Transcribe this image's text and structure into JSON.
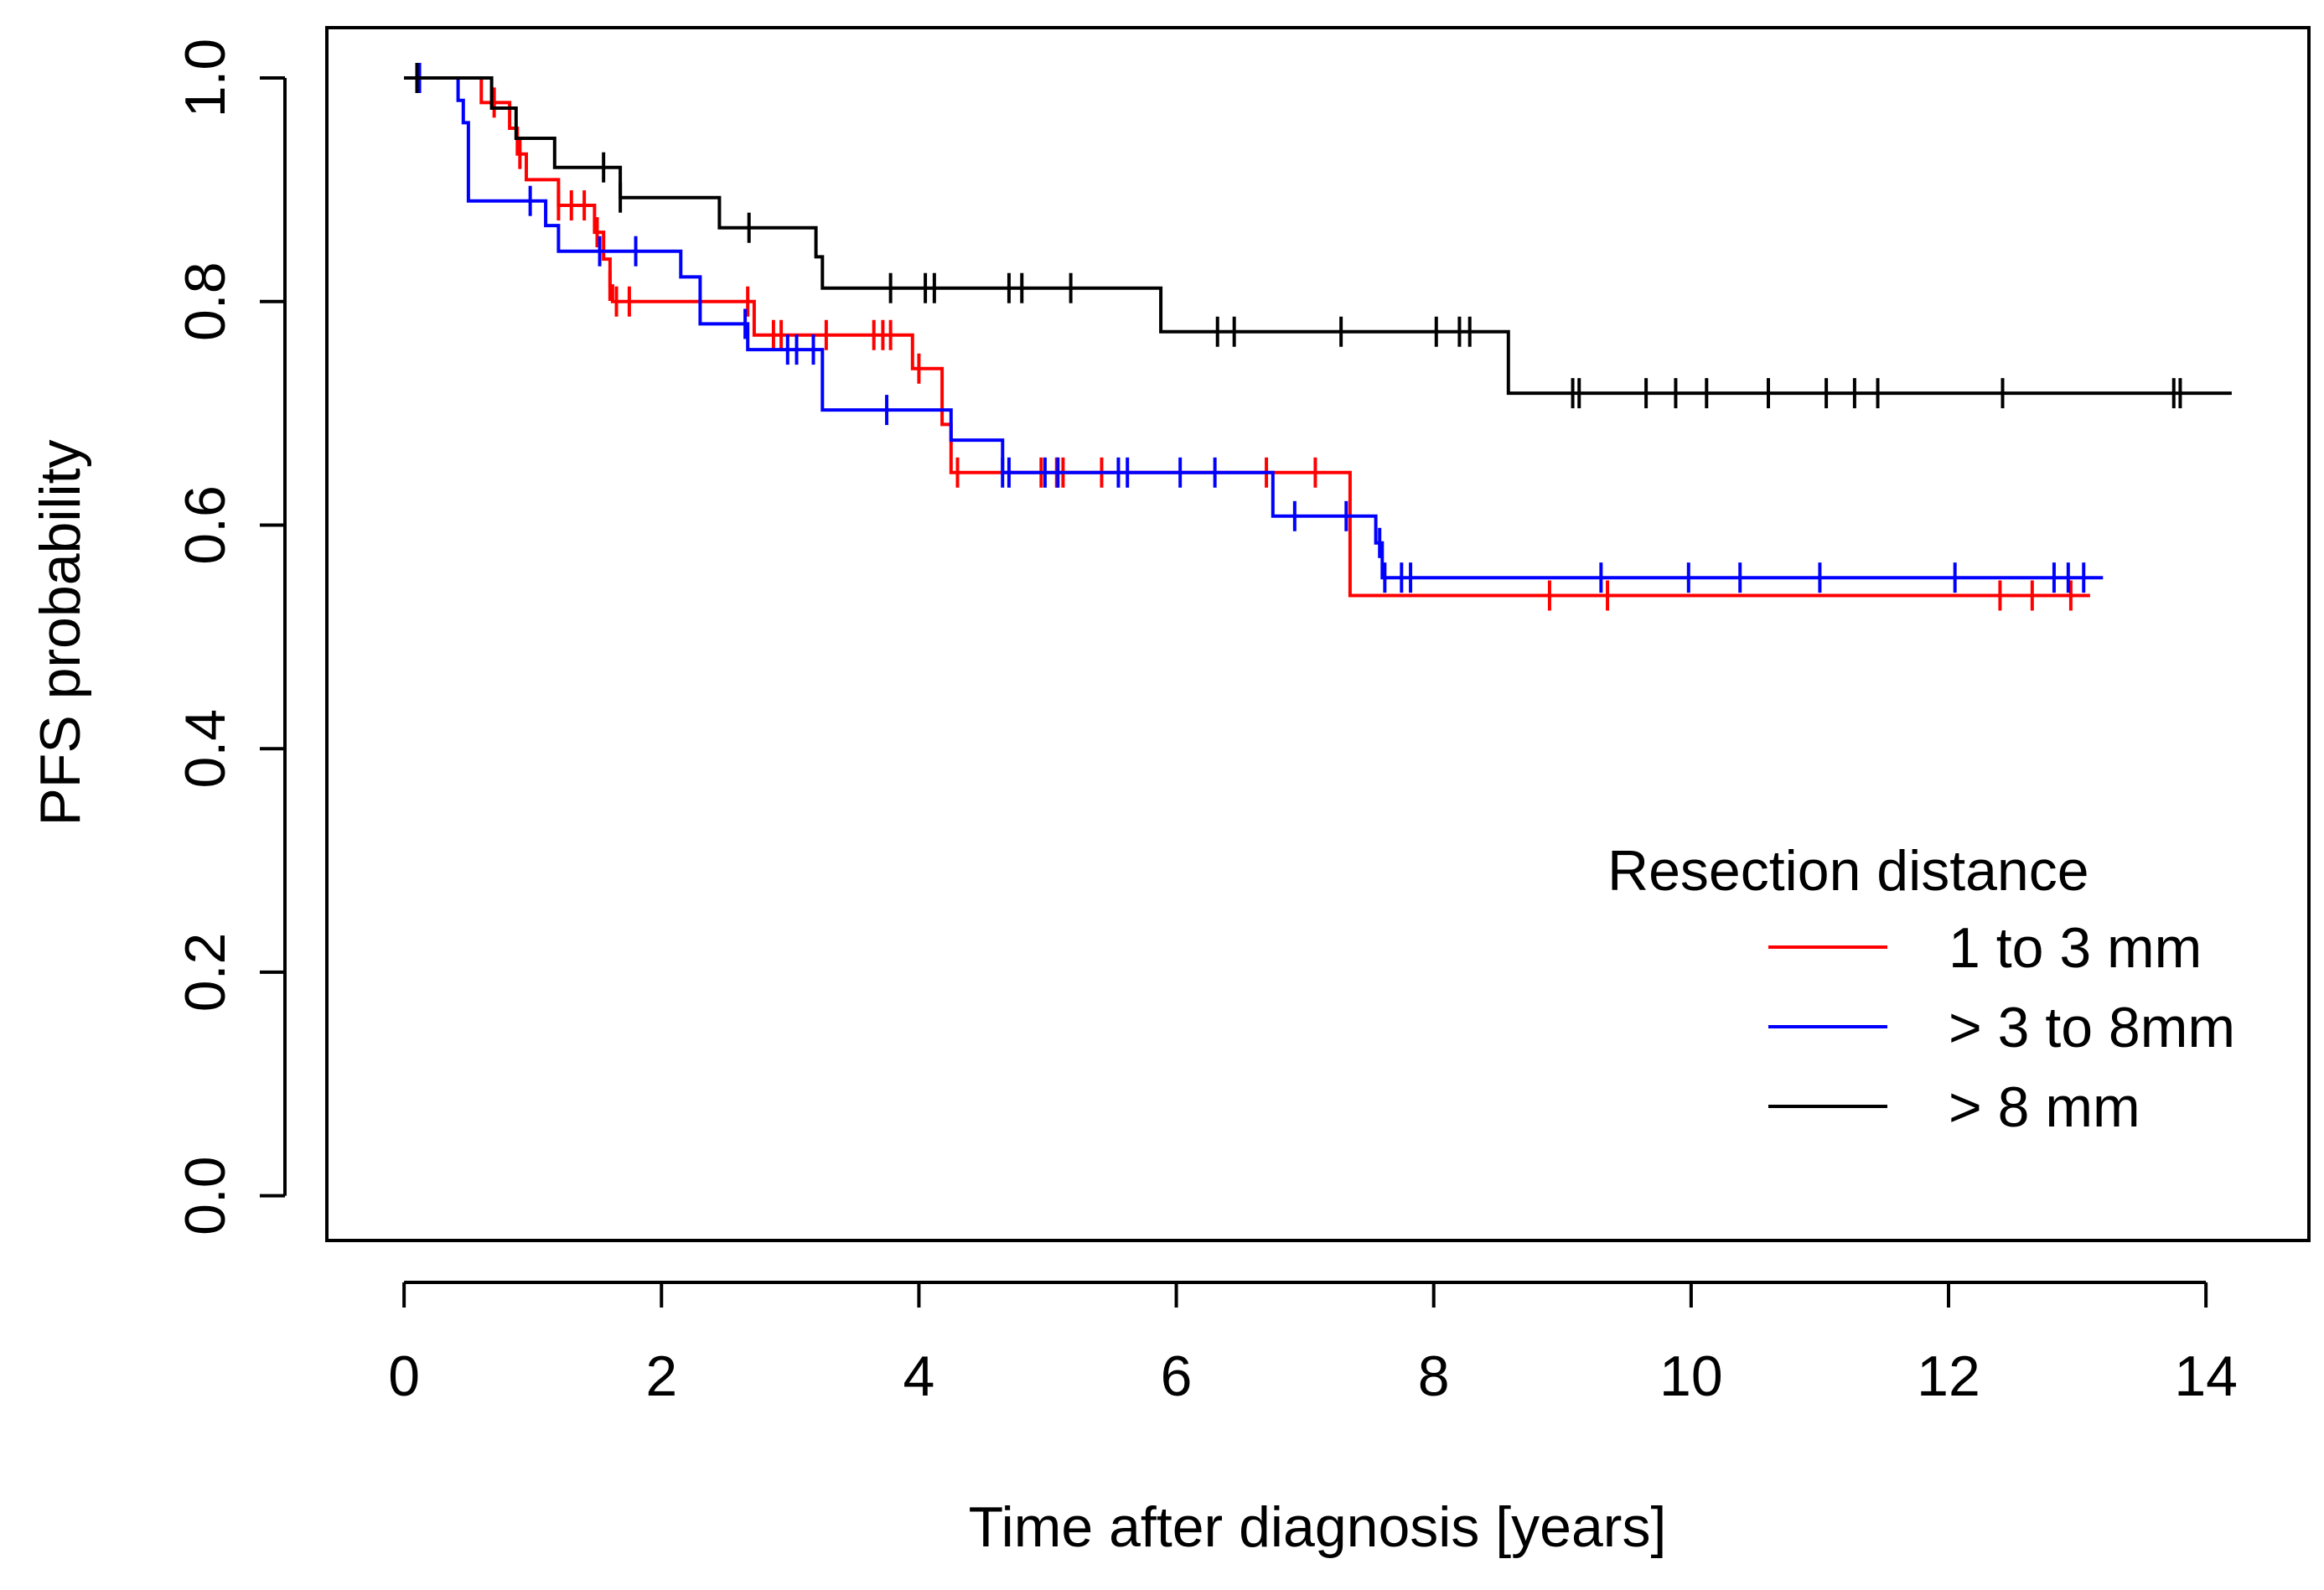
{
  "chart_data": {
    "type": "line",
    "title": "",
    "xlabel": "Time after diagnosis [years]",
    "ylabel": "PFS probability",
    "xlim": [
      -0.6,
      14.8
    ],
    "ylim": [
      -0.04,
      1.045
    ],
    "x_ticks": [
      0,
      2,
      4,
      6,
      8,
      10,
      12,
      14
    ],
    "y_ticks": [
      0.0,
      0.2,
      0.4,
      0.6,
      0.8,
      1.0
    ],
    "x_tick_labels": [
      "0",
      "2",
      "4",
      "6",
      "8",
      "10",
      "12",
      "14"
    ],
    "y_tick_labels": [
      "0.0",
      "0.2",
      "0.4",
      "0.6",
      "0.8",
      "1.0"
    ],
    "grid": false,
    "legend": {
      "title": "Resection distance",
      "position": "bottom-right"
    },
    "series": [
      {
        "name": "1 to 3 mm",
        "color": "#ff0000",
        "steps": [
          [
            0,
            1.0
          ],
          [
            0.6,
            0.978
          ],
          [
            0.82,
            0.955
          ],
          [
            0.88,
            0.932
          ],
          [
            0.95,
            0.909
          ],
          [
            1.2,
            0.886
          ],
          [
            1.48,
            0.862
          ],
          [
            1.55,
            0.838
          ],
          [
            1.6,
            0.814
          ],
          [
            1.62,
            0.8
          ],
          [
            2.72,
            0.77
          ],
          [
            3.95,
            0.74
          ],
          [
            4.18,
            0.69
          ],
          [
            4.25,
            0.647
          ],
          [
            7.35,
            0.537
          ],
          [
            13.1,
            0.537
          ]
        ],
        "censor_x": [
          0.7,
          0.9,
          1.2,
          1.3,
          1.4,
          1.5,
          1.6,
          1.65,
          1.75,
          2.67,
          2.87,
          2.93,
          3.28,
          3.65,
          3.72,
          3.78,
          4.0,
          4.3,
          4.95,
          5.07,
          5.12,
          5.42,
          6.7,
          7.08,
          8.9,
          9.35,
          12.4,
          12.65,
          12.95
        ]
      },
      {
        "name": "> 3 to 8mm",
        "color": "#0000ff",
        "steps": [
          [
            0,
            1.0
          ],
          [
            0.42,
            0.98
          ],
          [
            0.46,
            0.96
          ],
          [
            0.5,
            0.89
          ],
          [
            1.1,
            0.868
          ],
          [
            1.2,
            0.845
          ],
          [
            2.15,
            0.822
          ],
          [
            2.3,
            0.78
          ],
          [
            2.67,
            0.757
          ],
          [
            3.25,
            0.703
          ],
          [
            4.25,
            0.676
          ],
          [
            4.65,
            0.647
          ],
          [
            6.75,
            0.608
          ],
          [
            7.55,
            0.584
          ],
          [
            7.6,
            0.553
          ],
          [
            13.2,
            0.553
          ]
        ],
        "censor_x": [
          0.12,
          0.98,
          1.52,
          1.8,
          2.65,
          2.98,
          3.05,
          3.18,
          3.75,
          4.65,
          4.7,
          4.98,
          5.08,
          5.55,
          5.62,
          6.03,
          6.3,
          6.92,
          7.32,
          7.58,
          7.62,
          7.75,
          7.82,
          9.3,
          9.98,
          10.38,
          11.0,
          12.05,
          12.82,
          12.93,
          13.05
        ]
      },
      {
        "name": "> 8 mm",
        "color": "#000000",
        "steps": [
          [
            0,
            1.0
          ],
          [
            0.68,
            0.973
          ],
          [
            0.87,
            0.946
          ],
          [
            1.17,
            0.92
          ],
          [
            1.68,
            0.893
          ],
          [
            2.45,
            0.866
          ],
          [
            3.2,
            0.84
          ],
          [
            3.25,
            0.812
          ],
          [
            5.88,
            0.773
          ],
          [
            8.58,
            0.718
          ],
          [
            14.2,
            0.718
          ]
        ],
        "censor_x": [
          0.1,
          1.55,
          1.68,
          2.68,
          3.78,
          4.05,
          4.12,
          4.7,
          4.8,
          5.18,
          6.32,
          6.45,
          7.28,
          8.02,
          8.2,
          8.28,
          9.08,
          9.13,
          9.65,
          9.88,
          10.12,
          10.6,
          11.05,
          11.27,
          11.45,
          12.42,
          13.75,
          13.8
        ]
      }
    ]
  }
}
